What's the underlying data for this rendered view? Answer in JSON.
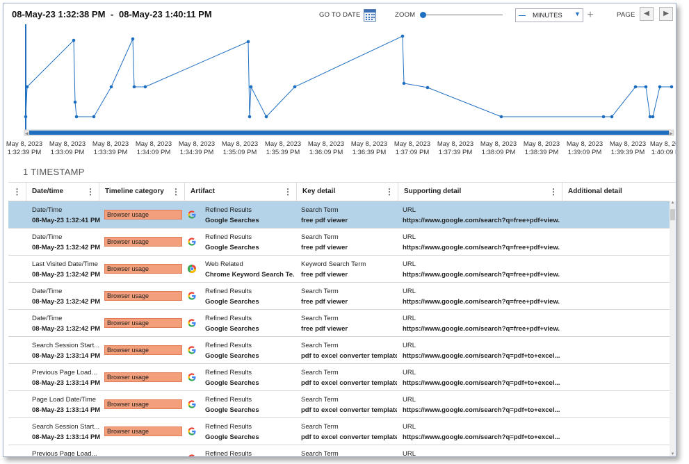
{
  "header": {
    "range_start": "08-May-23 1:32:38 PM",
    "range_separator": "-",
    "range_end": "08-May-23 1:40:11 PM",
    "go_to_date_label": "GO TO DATE",
    "zoom_label": "ZOOM",
    "unit_value": "MINUTES",
    "page_label": "PAGE"
  },
  "timeline": {
    "line_color": "#1f6fc0",
    "ticks": [
      {
        "date": "May 8, 2023",
        "time": "1:32:39 PM"
      },
      {
        "date": "May 8, 2023",
        "time": "1:33:09 PM"
      },
      {
        "date": "May 8, 2023",
        "time": "1:33:39 PM"
      },
      {
        "date": "May 8, 2023",
        "time": "1:34:09 PM"
      },
      {
        "date": "May 8, 2023",
        "time": "1:34:39 PM"
      },
      {
        "date": "May 8, 2023",
        "time": "1:35:09 PM"
      },
      {
        "date": "May 8, 2023",
        "time": "1:35:39 PM"
      },
      {
        "date": "May 8, 2023",
        "time": "1:36:09 PM"
      },
      {
        "date": "May 8, 2023",
        "time": "1:36:39 PM"
      },
      {
        "date": "May 8, 2023",
        "time": "1:37:09 PM"
      },
      {
        "date": "May 8, 2023",
        "time": "1:37:39 PM"
      },
      {
        "date": "May 8, 2023",
        "time": "1:38:09 PM"
      },
      {
        "date": "May 8, 2023",
        "time": "1:38:39 PM"
      },
      {
        "date": "May 8, 2023",
        "time": "1:39:09 PM"
      },
      {
        "date": "May 8, 2023",
        "time": "1:39:39 PM"
      },
      {
        "date": "May 8, 2023",
        "time": "1:40:09 PM"
      }
    ]
  },
  "count_label": "1 TIMESTAMP",
  "grid": {
    "columns": [
      "Date/time",
      "Timeline category",
      "Artifact",
      "Key detail",
      "Supporting detail",
      "Additional detail"
    ],
    "rows": [
      {
        "date_type": "Date/Time",
        "date_value": "08-May-23 1:32:41 PM",
        "category": "Browser usage",
        "icon": "google-icon",
        "artifact_type": "Refined Results",
        "artifact_value": "Google Searches",
        "key_label": "Search Term",
        "key_value": "free pdf viewer",
        "support_label": "URL",
        "support_value": "https://www.google.com/search?q=free+pdf+view...",
        "selected": true
      },
      {
        "date_type": "Date/Time",
        "date_value": "08-May-23 1:32:42 PM",
        "category": "Browser usage",
        "icon": "google-icon",
        "artifact_type": "Refined Results",
        "artifact_value": "Google Searches",
        "key_label": "Search Term",
        "key_value": "free pdf viewer",
        "support_label": "URL",
        "support_value": "https://www.google.com/search?q=free+pdf+view...",
        "selected": false
      },
      {
        "date_type": "Last Visited Date/Time",
        "date_value": "08-May-23 1:32:42 PM",
        "category": "Browser usage",
        "icon": "chrome-icon",
        "artifact_type": "Web Related",
        "artifact_value": "Chrome Keyword Search Te...",
        "key_label": "Keyword Search Term",
        "key_value": "free pdf viewer",
        "support_label": "URL",
        "support_value": "https://www.google.com/search?q=free+pdf+view...",
        "selected": false
      },
      {
        "date_type": "Date/Time",
        "date_value": "08-May-23 1:32:42 PM",
        "category": "Browser usage",
        "icon": "google-icon",
        "artifact_type": "Refined Results",
        "artifact_value": "Google Searches",
        "key_label": "Search Term",
        "key_value": "free pdf viewer",
        "support_label": "URL",
        "support_value": "https://www.google.com/search?q=free+pdf+view...",
        "selected": false
      },
      {
        "date_type": "Date/Time",
        "date_value": "08-May-23 1:32:42 PM",
        "category": "Browser usage",
        "icon": "google-icon",
        "artifact_type": "Refined Results",
        "artifact_value": "Google Searches",
        "key_label": "Search Term",
        "key_value": "free pdf viewer",
        "support_label": "URL",
        "support_value": "https://www.google.com/search?q=free+pdf+view...",
        "selected": false
      },
      {
        "date_type": "Search Session Start...",
        "date_value": "08-May-23 1:33:14 PM",
        "category": "Browser usage",
        "icon": "google-icon",
        "artifact_type": "Refined Results",
        "artifact_value": "Google Searches",
        "key_label": "Search Term",
        "key_value": "pdf to excel converter template",
        "support_label": "URL",
        "support_value": "https://www.google.com/search?q=pdf+to+excel...",
        "selected": false
      },
      {
        "date_type": "Previous Page Load...",
        "date_value": "08-May-23 1:33:14 PM",
        "category": "Browser usage",
        "icon": "google-icon",
        "artifact_type": "Refined Results",
        "artifact_value": "Google Searches",
        "key_label": "Search Term",
        "key_value": "pdf to excel converter template",
        "support_label": "URL",
        "support_value": "https://www.google.com/search?q=pdf+to+excel...",
        "selected": false
      },
      {
        "date_type": "Page Load Date/Time",
        "date_value": "08-May-23 1:33:14 PM",
        "category": "Browser usage",
        "icon": "google-icon",
        "artifact_type": "Refined Results",
        "artifact_value": "Google Searches",
        "key_label": "Search Term",
        "key_value": "pdf to excel converter template",
        "support_label": "URL",
        "support_value": "https://www.google.com/search?q=pdf+to+excel...",
        "selected": false
      },
      {
        "date_type": "Search Session Start...",
        "date_value": "08-May-23 1:33:14 PM",
        "category": "Browser usage",
        "icon": "google-icon",
        "artifact_type": "Refined Results",
        "artifact_value": "Google Searches",
        "key_label": "Search Term",
        "key_value": "pdf to excel converter template",
        "support_label": "URL",
        "support_value": "https://www.google.com/search?q=pdf+to+excel...",
        "selected": false
      },
      {
        "date_type": "Previous Page Load...",
        "date_value": "",
        "category": "",
        "icon": "google-icon",
        "artifact_type": "Refined Results",
        "artifact_value": "",
        "key_label": "Search Term",
        "key_value": "",
        "support_label": "URL",
        "support_value": "",
        "selected": false
      }
    ]
  }
}
